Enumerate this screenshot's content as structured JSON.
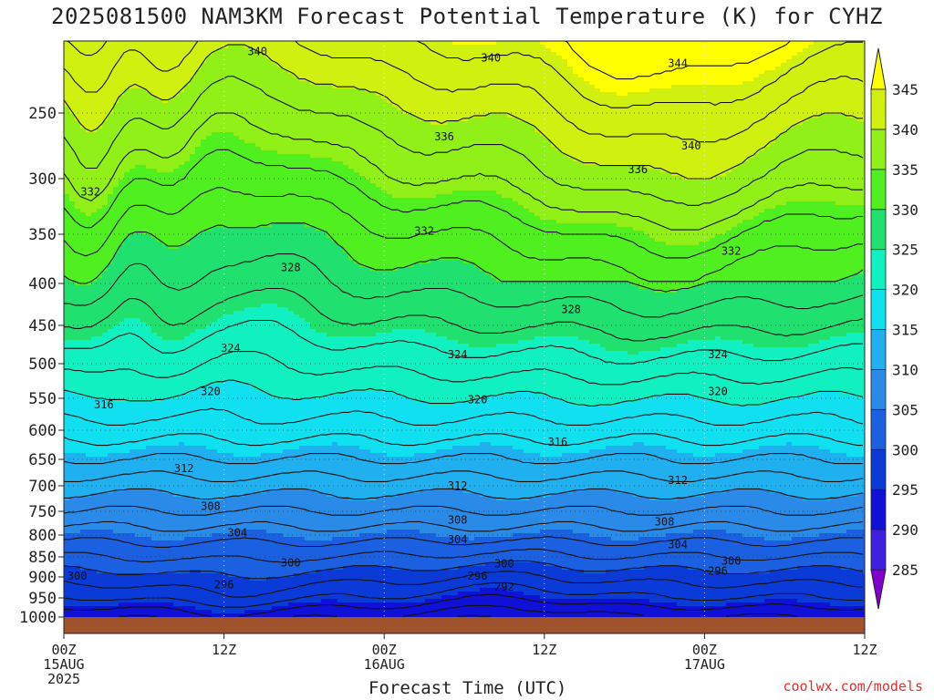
{
  "title": "2025081500 NAM3KM Forecast Potential Temperature (K) for CYHZ",
  "watermark": "coolwx.com/models",
  "chart_data": {
    "type": "contour",
    "title": "2025081500 NAM3KM Forecast Potential Temperature (K) for CYHZ",
    "xlabel": "Forecast Time (UTC)",
    "ylabel": "",
    "x_ticks": [
      {
        "hour": 0,
        "lines": [
          "00Z",
          "15AUG",
          "2025"
        ]
      },
      {
        "hour": 12,
        "lines": [
          "12Z"
        ]
      },
      {
        "hour": 24,
        "lines": [
          "00Z",
          "16AUG"
        ]
      },
      {
        "hour": 36,
        "lines": [
          "12Z"
        ]
      },
      {
        "hour": 48,
        "lines": [
          "00Z",
          "17AUG"
        ]
      },
      {
        "hour": 60,
        "lines": [
          "12Z"
        ]
      }
    ],
    "xlim": [
      0,
      60
    ],
    "y_axis": "pressure (hPa), reversed",
    "ylim": [
      1000,
      200
    ],
    "y_ticks": [
      250,
      300,
      350,
      400,
      450,
      500,
      550,
      600,
      650,
      700,
      750,
      800,
      850,
      900,
      950,
      1000
    ],
    "grid": "dotted",
    "colorbar": {
      "levels": [
        285,
        290,
        295,
        300,
        305,
        310,
        315,
        320,
        325,
        330,
        335,
        340,
        345
      ],
      "colors": [
        "#8000d0",
        "#4020e0",
        "#1010d8",
        "#0a3ad8",
        "#1a60e0",
        "#2a8ae8",
        "#20b0f0",
        "#10e0f0",
        "#10f0c0",
        "#20e070",
        "#50f020",
        "#90f018",
        "#d0f010",
        "#ffff00"
      ]
    },
    "contour_levels_labeled": [
      292,
      296,
      300,
      304,
      308,
      312,
      316,
      320,
      324,
      328,
      332,
      336,
      340,
      344
    ],
    "contour_labels": [
      {
        "value": 340,
        "hour": 14.5,
        "p": 203
      },
      {
        "value": 340,
        "hour": 32.0,
        "p": 208
      },
      {
        "value": 344,
        "hour": 46.0,
        "p": 212
      },
      {
        "value": 336,
        "hour": 28.5,
        "p": 268
      },
      {
        "value": 340,
        "hour": 47.0,
        "p": 275
      },
      {
        "value": 336,
        "hour": 43.0,
        "p": 293
      },
      {
        "value": 332,
        "hour": 2.0,
        "p": 312
      },
      {
        "value": 332,
        "hour": 27.0,
        "p": 347
      },
      {
        "value": 332,
        "hour": 50.0,
        "p": 367
      },
      {
        "value": 328,
        "hour": 17.0,
        "p": 384
      },
      {
        "value": 328,
        "hour": 38.0,
        "p": 431
      },
      {
        "value": 324,
        "hour": 12.5,
        "p": 480
      },
      {
        "value": 324,
        "hour": 29.5,
        "p": 488
      },
      {
        "value": 324,
        "hour": 49.0,
        "p": 488
      },
      {
        "value": 320,
        "hour": 11.0,
        "p": 540
      },
      {
        "value": 320,
        "hour": 31.0,
        "p": 552
      },
      {
        "value": 320,
        "hour": 49.0,
        "p": 540
      },
      {
        "value": 316,
        "hour": 3.0,
        "p": 560
      },
      {
        "value": 316,
        "hour": 37.0,
        "p": 620
      },
      {
        "value": 312,
        "hour": 9.0,
        "p": 667
      },
      {
        "value": 312,
        "hour": 29.5,
        "p": 700
      },
      {
        "value": 312,
        "hour": 46.0,
        "p": 690
      },
      {
        "value": 308,
        "hour": 11.0,
        "p": 740
      },
      {
        "value": 308,
        "hour": 29.5,
        "p": 768
      },
      {
        "value": 308,
        "hour": 45.0,
        "p": 772
      },
      {
        "value": 304,
        "hour": 13.0,
        "p": 795
      },
      {
        "value": 304,
        "hour": 29.5,
        "p": 810
      },
      {
        "value": 304,
        "hour": 46.0,
        "p": 822
      },
      {
        "value": 300,
        "hour": 17.0,
        "p": 865
      },
      {
        "value": 300,
        "hour": 33.0,
        "p": 867
      },
      {
        "value": 300,
        "hour": 50.0,
        "p": 860
      },
      {
        "value": 300,
        "hour": 1.0,
        "p": 898
      },
      {
        "value": 296,
        "hour": 12.0,
        "p": 918
      },
      {
        "value": 296,
        "hour": 31.0,
        "p": 898
      },
      {
        "value": 296,
        "hour": 49.0,
        "p": 885
      },
      {
        "value": 292,
        "hour": 33.0,
        "p": 924
      }
    ],
    "levels_at_reference": {
      "p": [
        1000,
        950,
        900,
        850,
        800,
        750,
        700,
        650,
        600,
        550,
        500,
        450,
        400,
        350,
        300,
        250,
        200
      ],
      "theta": [
        292,
        296,
        299,
        302,
        305,
        308,
        311,
        314,
        317,
        320,
        323,
        326,
        329,
        332,
        336,
        340,
        344
      ]
    }
  }
}
